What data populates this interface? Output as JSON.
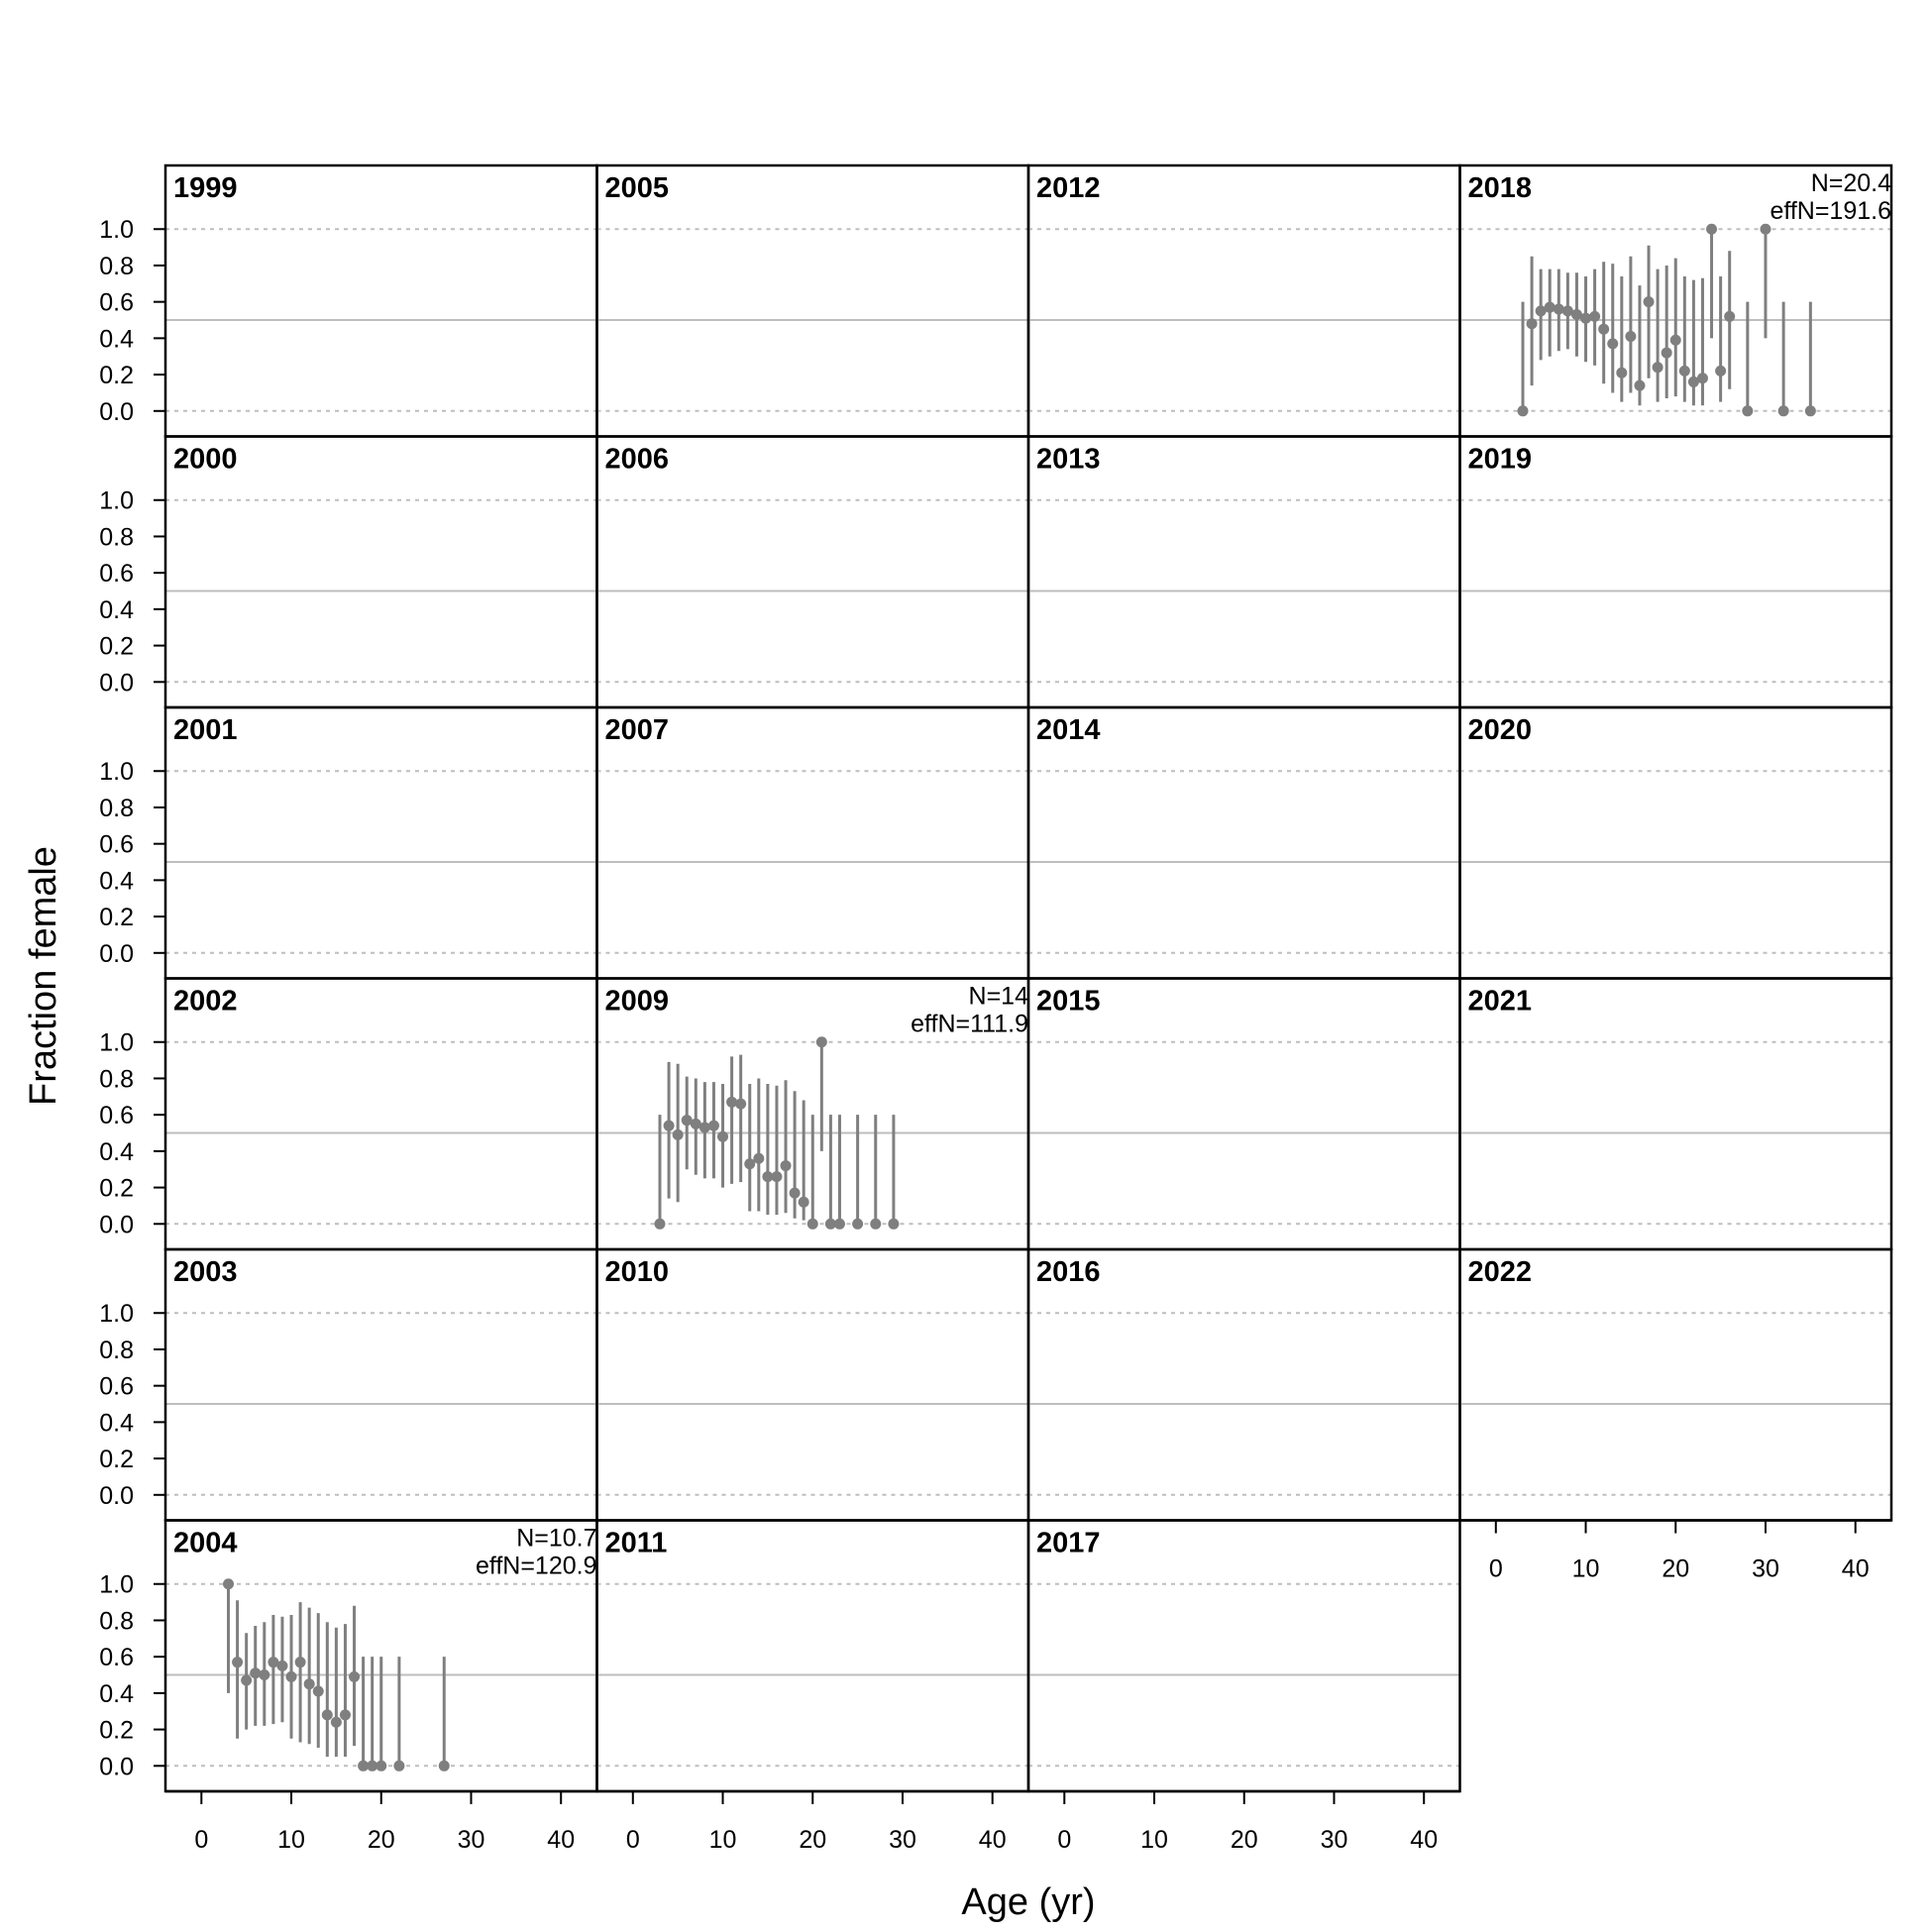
{
  "chart_data": {
    "type": "scatter",
    "description_free": true,
    "xlabel": "Age (yr)",
    "ylabel": "Fraction female",
    "xlim": [
      -4,
      44
    ],
    "ylim": [
      -0.14,
      1.35
    ],
    "xticks": [
      "0",
      "10",
      "20",
      "30",
      "40"
    ],
    "xtick_values": [
      0,
      10,
      20,
      30,
      40
    ],
    "yticks": [
      "0.0",
      "0.2",
      "0.4",
      "0.6",
      "0.8",
      "1.0"
    ],
    "ytick_values": [
      0,
      0.2,
      0.4,
      0.6,
      0.8,
      1.0
    ],
    "reference_line": 0.5,
    "dotted_lines": [
      0,
      1
    ],
    "colors": {
      "points": "#7f7f7f",
      "reference": "#bebebe",
      "dotted": "#bebebe",
      "frame": "#000000"
    },
    "panels": [
      {
        "year": "1999"
      },
      {
        "year": "2000"
      },
      {
        "year": "2001"
      },
      {
        "year": "2002"
      },
      {
        "year": "2003"
      },
      {
        "year": "2004",
        "n_label": "N=10.7",
        "effn_label": "effN=120.9",
        "points": [
          [
            3,
            1.0,
            0.4,
            1.0
          ],
          [
            4,
            0.57,
            0.15,
            0.91
          ],
          [
            5,
            0.47,
            0.2,
            0.73
          ],
          [
            6,
            0.51,
            0.22,
            0.77
          ],
          [
            7,
            0.5,
            0.22,
            0.79
          ],
          [
            8,
            0.57,
            0.23,
            0.83
          ],
          [
            9,
            0.55,
            0.24,
            0.82
          ],
          [
            10,
            0.49,
            0.15,
            0.83
          ],
          [
            11,
            0.57,
            0.13,
            0.9
          ],
          [
            12,
            0.45,
            0.12,
            0.87
          ],
          [
            13,
            0.41,
            0.1,
            0.84
          ],
          [
            14,
            0.28,
            0.05,
            0.79
          ],
          [
            15,
            0.24,
            0.05,
            0.76
          ],
          [
            16,
            0.28,
            0.05,
            0.78
          ],
          [
            17,
            0.49,
            0.11,
            0.88
          ],
          [
            18,
            0.0,
            0.0,
            0.6
          ],
          [
            19,
            0.0,
            0.0,
            0.6
          ],
          [
            20,
            0.0,
            0.0,
            0.6
          ],
          [
            22,
            0.0,
            0.0,
            0.6
          ],
          [
            27,
            0.0,
            0.0,
            0.6
          ]
        ]
      },
      {
        "year": "2005"
      },
      {
        "year": "2006"
      },
      {
        "year": "2007"
      },
      {
        "year": "2009",
        "n_label": "N=14",
        "effn_label": "effN=111.9",
        "points": [
          [
            3,
            0.0,
            0.0,
            0.6
          ],
          [
            4,
            0.54,
            0.14,
            0.89
          ],
          [
            5,
            0.49,
            0.12,
            0.88
          ],
          [
            6,
            0.57,
            0.3,
            0.81
          ],
          [
            7,
            0.55,
            0.27,
            0.8
          ],
          [
            8,
            0.53,
            0.25,
            0.78
          ],
          [
            9,
            0.54,
            0.25,
            0.78
          ],
          [
            10,
            0.48,
            0.2,
            0.77
          ],
          [
            11,
            0.67,
            0.22,
            0.92
          ],
          [
            12,
            0.66,
            0.23,
            0.93
          ],
          [
            13,
            0.33,
            0.07,
            0.77
          ],
          [
            14,
            0.36,
            0.07,
            0.8
          ],
          [
            15,
            0.26,
            0.05,
            0.77
          ],
          [
            16,
            0.26,
            0.05,
            0.76
          ],
          [
            17,
            0.32,
            0.06,
            0.79
          ],
          [
            18,
            0.17,
            0.03,
            0.73
          ],
          [
            19,
            0.12,
            0.02,
            0.68
          ],
          [
            20,
            0.0,
            0.0,
            0.6
          ],
          [
            21,
            1.0,
            0.4,
            1.0
          ],
          [
            22,
            0.0,
            0.0,
            0.6
          ],
          [
            23,
            0.0,
            0.0,
            0.6
          ],
          [
            25,
            0.0,
            0.0,
            0.6
          ],
          [
            27,
            0.0,
            0.0,
            0.6
          ],
          [
            29,
            0.0,
            0.0,
            0.6
          ]
        ]
      },
      {
        "year": "2010"
      },
      {
        "year": "2011"
      },
      {
        "year": "2012"
      },
      {
        "year": "2013"
      },
      {
        "year": "2014"
      },
      {
        "year": "2015"
      },
      {
        "year": "2016"
      },
      {
        "year": "2017"
      },
      {
        "year": "2018",
        "n_label": "N=20.4",
        "effn_label": "effN=191.6",
        "points": [
          [
            3,
            0.0,
            0.0,
            0.6
          ],
          [
            4,
            0.48,
            0.14,
            0.85
          ],
          [
            5,
            0.55,
            0.28,
            0.78
          ],
          [
            6,
            0.57,
            0.3,
            0.78
          ],
          [
            7,
            0.56,
            0.33,
            0.78
          ],
          [
            8,
            0.55,
            0.34,
            0.76
          ],
          [
            9,
            0.53,
            0.3,
            0.76
          ],
          [
            10,
            0.51,
            0.27,
            0.74
          ],
          [
            11,
            0.52,
            0.25,
            0.78
          ],
          [
            12,
            0.45,
            0.15,
            0.82
          ],
          [
            13,
            0.37,
            0.1,
            0.81
          ],
          [
            14,
            0.21,
            0.05,
            0.74
          ],
          [
            15,
            0.41,
            0.1,
            0.85
          ],
          [
            16,
            0.14,
            0.03,
            0.69
          ],
          [
            17,
            0.6,
            0.18,
            0.91
          ],
          [
            18,
            0.24,
            0.05,
            0.78
          ],
          [
            19,
            0.32,
            0.07,
            0.8
          ],
          [
            20,
            0.39,
            0.08,
            0.84
          ],
          [
            21,
            0.22,
            0.05,
            0.74
          ],
          [
            22,
            0.16,
            0.03,
            0.72
          ],
          [
            23,
            0.18,
            0.03,
            0.73
          ],
          [
            24,
            1.0,
            0.4,
            1.0
          ],
          [
            25,
            0.22,
            0.05,
            0.74
          ],
          [
            26,
            0.52,
            0.12,
            0.88
          ],
          [
            28,
            0.0,
            0.0,
            0.6
          ],
          [
            30,
            1.0,
            0.4,
            1.0
          ],
          [
            32,
            0.0,
            0.0,
            0.6
          ],
          [
            35,
            0.0,
            0.0,
            0.6
          ]
        ]
      },
      {
        "year": "2019"
      },
      {
        "year": "2020"
      },
      {
        "year": "2021"
      },
      {
        "year": "2022"
      }
    ]
  }
}
